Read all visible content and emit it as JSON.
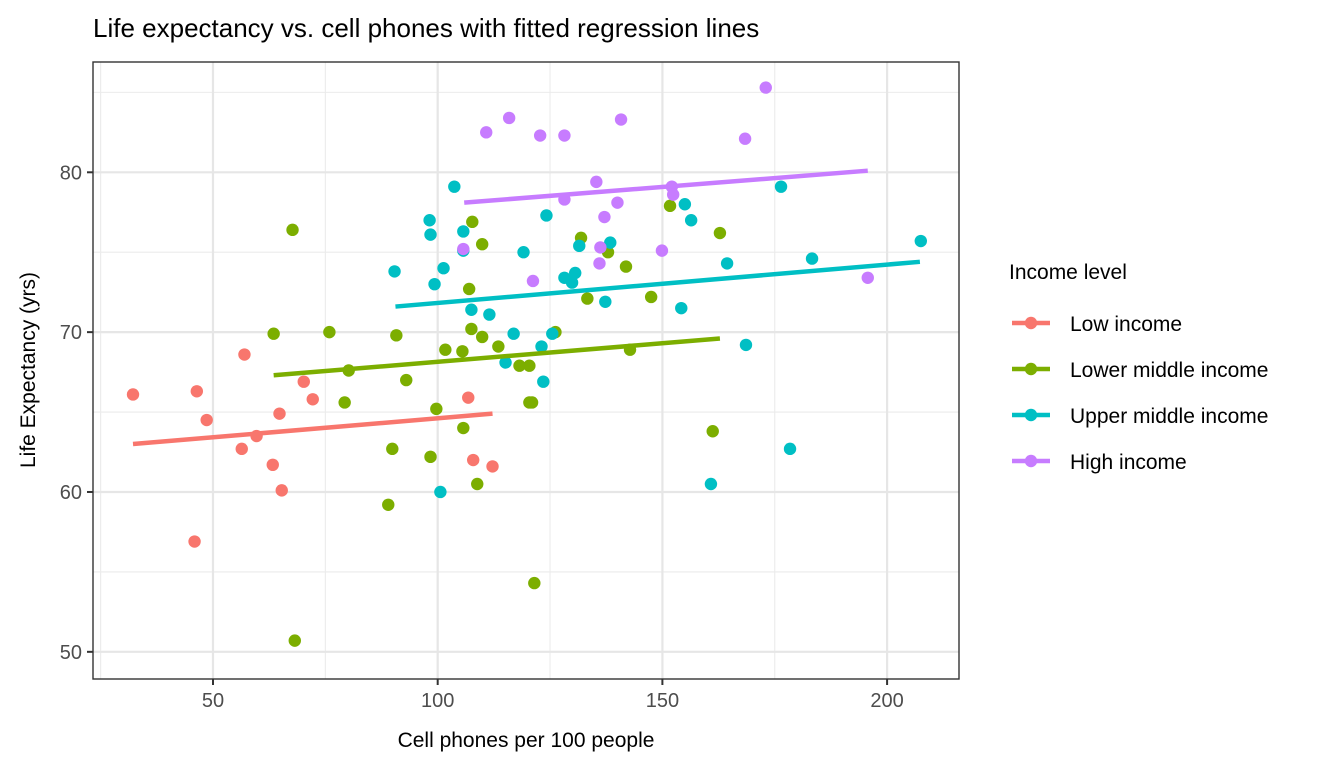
{
  "chart_data": {
    "type": "scatter",
    "title": "Life expectancy vs. cell phones with fitted regression lines",
    "xlabel": "Cell phones per 100 people",
    "ylabel": "Life Expectancy (yrs)",
    "xlim": [
      23.3,
      216
    ],
    "ylim": [
      48.3,
      86.9
    ],
    "xticks": [
      50,
      100,
      150,
      200
    ],
    "yticks": [
      50,
      60,
      70,
      80
    ],
    "xtick_labels": [
      "50",
      "100",
      "150",
      "200"
    ],
    "ytick_labels": [
      "50",
      "60",
      "70",
      "80"
    ],
    "grid": true,
    "legend": {
      "title": "Income level",
      "position": "right"
    },
    "series": [
      {
        "name": "Low income",
        "color": "#F8766D",
        "points": [
          [
            32.2,
            66.1
          ],
          [
            46.4,
            66.3
          ],
          [
            48.6,
            64.5
          ],
          [
            57.0,
            68.6
          ],
          [
            45.9,
            56.9
          ],
          [
            56.4,
            62.7
          ],
          [
            59.7,
            63.5
          ],
          [
            63.3,
            61.7
          ],
          [
            64.8,
            64.9
          ],
          [
            65.3,
            60.1
          ],
          [
            70.2,
            66.9
          ],
          [
            72.2,
            65.8
          ],
          [
            106.8,
            65.9
          ],
          [
            107.9,
            62.0
          ],
          [
            112.2,
            61.6
          ]
        ],
        "fit": [
          [
            32.2,
            63.0
          ],
          [
            112.2,
            64.9
          ]
        ]
      },
      {
        "name": "Lower middle income",
        "color": "#7CAE00",
        "points": [
          [
            67.7,
            76.4
          ],
          [
            63.5,
            69.9
          ],
          [
            75.9,
            70.0
          ],
          [
            90.8,
            69.8
          ],
          [
            80.2,
            67.6
          ],
          [
            93.0,
            67.0
          ],
          [
            79.3,
            65.6
          ],
          [
            99.7,
            65.2
          ],
          [
            101.7,
            68.9
          ],
          [
            105.5,
            68.8
          ],
          [
            107.5,
            70.2
          ],
          [
            109.9,
            69.7
          ],
          [
            113.5,
            69.1
          ],
          [
            107.0,
            72.7
          ],
          [
            107.7,
            76.9
          ],
          [
            109.9,
            75.5
          ],
          [
            89.9,
            62.7
          ],
          [
            98.4,
            62.2
          ],
          [
            108.8,
            60.5
          ],
          [
            105.7,
            64.0
          ],
          [
            89.0,
            59.2
          ],
          [
            68.2,
            50.7
          ],
          [
            121.5,
            54.3
          ],
          [
            118.2,
            67.9
          ],
          [
            120.4,
            67.9
          ],
          [
            126.2,
            70.0
          ],
          [
            120.4,
            65.6
          ],
          [
            121.0,
            65.6
          ],
          [
            131.9,
            75.9
          ],
          [
            137.9,
            75.0
          ],
          [
            141.9,
            74.1
          ],
          [
            133.3,
            72.1
          ],
          [
            147.5,
            72.2
          ],
          [
            142.8,
            68.9
          ],
          [
            151.7,
            77.9
          ],
          [
            162.8,
            76.2
          ],
          [
            161.2,
            63.8
          ]
        ],
        "fit": [
          [
            63.5,
            67.3
          ],
          [
            162.8,
            69.6
          ]
        ]
      },
      {
        "name": "Upper middle income",
        "color": "#00BFC4",
        "points": [
          [
            90.4,
            73.8
          ],
          [
            98.2,
            77.0
          ],
          [
            98.4,
            76.1
          ],
          [
            103.7,
            79.1
          ],
          [
            101.3,
            74.0
          ],
          [
            99.3,
            73.0
          ],
          [
            105.7,
            76.3
          ],
          [
            105.7,
            75.1
          ],
          [
            107.5,
            71.4
          ],
          [
            111.5,
            71.1
          ],
          [
            115.1,
            68.1
          ],
          [
            116.9,
            69.9
          ],
          [
            119.1,
            75.0
          ],
          [
            124.2,
            77.3
          ],
          [
            125.5,
            69.9
          ],
          [
            123.1,
            69.1
          ],
          [
            123.5,
            66.9
          ],
          [
            128.2,
            73.4
          ],
          [
            129.9,
            73.1
          ],
          [
            130.6,
            73.7
          ],
          [
            131.5,
            75.4
          ],
          [
            137.3,
            71.9
          ],
          [
            138.4,
            75.6
          ],
          [
            155.0,
            78.0
          ],
          [
            156.4,
            77.0
          ],
          [
            154.2,
            71.5
          ],
          [
            164.4,
            74.3
          ],
          [
            168.6,
            69.2
          ],
          [
            176.4,
            79.1
          ],
          [
            183.3,
            74.6
          ],
          [
            207.5,
            75.7
          ],
          [
            100.6,
            60.0
          ],
          [
            160.8,
            60.5
          ],
          [
            178.4,
            62.7
          ]
        ],
        "fit": [
          [
            90.6,
            71.6
          ],
          [
            207.3,
            74.4
          ]
        ]
      },
      {
        "name": "High income",
        "color": "#C77CFF",
        "points": [
          [
            110.8,
            82.5
          ],
          [
            115.9,
            83.4
          ],
          [
            122.8,
            82.3
          ],
          [
            128.2,
            82.3
          ],
          [
            140.8,
            83.3
          ],
          [
            173.0,
            85.3
          ],
          [
            168.4,
            82.1
          ],
          [
            128.2,
            78.3
          ],
          [
            135.3,
            79.4
          ],
          [
            140.0,
            78.1
          ],
          [
            137.1,
            77.2
          ],
          [
            136.2,
            75.3
          ],
          [
            136.0,
            74.3
          ],
          [
            121.2,
            73.2
          ],
          [
            149.9,
            75.1
          ],
          [
            152.1,
            79.1
          ],
          [
            152.4,
            78.6
          ],
          [
            105.7,
            75.2
          ],
          [
            195.7,
            73.4
          ]
        ],
        "fit": [
          [
            105.9,
            78.1
          ],
          [
            195.7,
            80.1
          ]
        ]
      }
    ]
  }
}
